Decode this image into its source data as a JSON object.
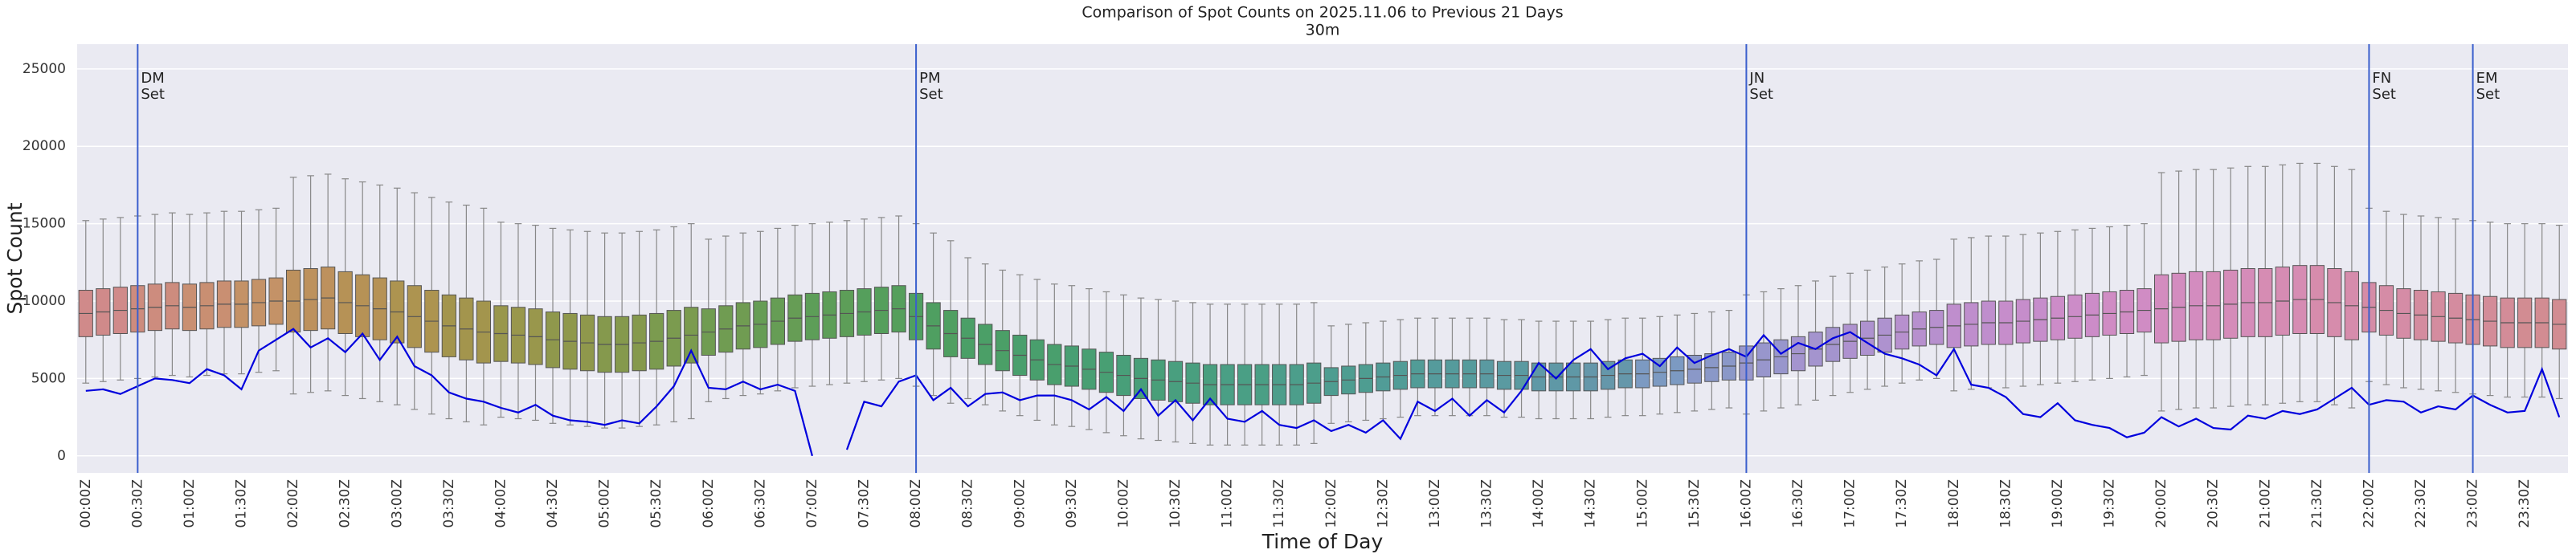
{
  "chart_data": {
    "type": "box",
    "title": "Comparison of Spot Counts on 2025.11.06 to Previous 21 Days",
    "subtitle": "30m",
    "x_label": "Time of Day",
    "y_label": "Spot Count",
    "grid": true,
    "ylim": [
      -1100,
      26600
    ],
    "yticks": [
      0,
      5000,
      10000,
      15000,
      20000,
      25000
    ],
    "categories": [
      "00:00Z",
      null,
      null,
      "00:30Z",
      null,
      null,
      "01:00Z",
      null,
      null,
      "01:30Z",
      null,
      null,
      "02:00Z",
      null,
      null,
      "02:30Z",
      null,
      null,
      "03:00Z",
      null,
      null,
      "03:30Z",
      null,
      null,
      "04:00Z",
      null,
      null,
      "04:30Z",
      null,
      null,
      "05:00Z",
      null,
      null,
      "05:30Z",
      null,
      null,
      "06:00Z",
      null,
      null,
      "06:30Z",
      null,
      null,
      "07:00Z",
      null,
      null,
      "07:30Z",
      null,
      null,
      "08:00Z",
      null,
      null,
      "08:30Z",
      null,
      null,
      "09:00Z",
      null,
      null,
      "09:30Z",
      null,
      null,
      "10:00Z",
      null,
      null,
      "10:30Z",
      null,
      null,
      "11:00Z",
      null,
      null,
      "11:30Z",
      null,
      null,
      "12:00Z",
      null,
      null,
      "12:30Z",
      null,
      null,
      "13:00Z",
      null,
      null,
      "13:30Z",
      null,
      null,
      "14:00Z",
      null,
      null,
      "14:30Z",
      null,
      null,
      "15:00Z",
      null,
      null,
      "15:30Z",
      null,
      null,
      "16:00Z",
      null,
      null,
      "16:30Z",
      null,
      null,
      "17:00Z",
      null,
      null,
      "17:30Z",
      null,
      null,
      "18:00Z",
      null,
      null,
      "18:30Z",
      null,
      null,
      "19:00Z",
      null,
      null,
      "19:30Z",
      null,
      null,
      "20:00Z",
      null,
      null,
      "20:30Z",
      null,
      null,
      "21:00Z",
      null,
      null,
      "21:30Z",
      null,
      null,
      "22:00Z",
      null,
      null,
      "22:30Z",
      null,
      null,
      "23:00Z",
      null,
      null,
      "23:30Z",
      null,
      null
    ],
    "boxes": {
      "median": [
        9200,
        9300,
        9400,
        9500,
        9600,
        9700,
        9600,
        9700,
        9800,
        9800,
        9900,
        10000,
        10000,
        10100,
        10200,
        9900,
        9700,
        9500,
        9300,
        9000,
        8700,
        8400,
        8200,
        8000,
        7900,
        7800,
        7700,
        7500,
        7400,
        7300,
        7200,
        7200,
        7300,
        7400,
        7600,
        7800,
        8000,
        8200,
        8400,
        8500,
        8700,
        8900,
        9000,
        9100,
        9200,
        9300,
        9400,
        9500,
        9000,
        8400,
        7900,
        7600,
        7200,
        6800,
        6500,
        6200,
        5900,
        5800,
        5600,
        5400,
        5200,
        5000,
        4900,
        4800,
        4700,
        4600,
        4600,
        4600,
        4600,
        4600,
        4600,
        4700,
        4800,
        4900,
        5000,
        5100,
        5200,
        5300,
        5300,
        5300,
        5300,
        5300,
        5200,
        5200,
        5100,
        5100,
        5100,
        5100,
        5200,
        5300,
        5300,
        5400,
        5500,
        5600,
        5700,
        5800,
        6000,
        6200,
        6400,
        6600,
        6900,
        7200,
        7400,
        7600,
        7800,
        8000,
        8200,
        8300,
        8400,
        8500,
        8600,
        8600,
        8700,
        8800,
        8900,
        9000,
        9100,
        9200,
        9300,
        9400,
        9500,
        9600,
        9700,
        9700,
        9800,
        9900,
        9900,
        10000,
        10100,
        10100,
        9900,
        9700,
        9600,
        9400,
        9200,
        9100,
        9000,
        8900,
        8800,
        8700,
        8600,
        8600,
        8600,
        8500
      ],
      "q1": [
        7700,
        7800,
        7900,
        8000,
        8100,
        8200,
        8100,
        8200,
        8300,
        8300,
        8400,
        8500,
        8000,
        8100,
        8200,
        7900,
        7700,
        7500,
        7300,
        7000,
        6700,
        6400,
        6200,
        6000,
        6100,
        6000,
        5900,
        5700,
        5600,
        5500,
        5400,
        5400,
        5500,
        5600,
        5800,
        6000,
        6500,
        6700,
        6900,
        7000,
        7200,
        7400,
        7500,
        7600,
        7700,
        7800,
        7900,
        8000,
        7500,
        6900,
        6400,
        6300,
        5900,
        5500,
        5200,
        4900,
        4600,
        4500,
        4300,
        4100,
        3900,
        3700,
        3600,
        3500,
        3400,
        3300,
        3300,
        3300,
        3300,
        3300,
        3300,
        3400,
        3900,
        4000,
        4100,
        4200,
        4300,
        4400,
        4400,
        4400,
        4400,
        4400,
        4300,
        4300,
        4200,
        4200,
        4200,
        4200,
        4300,
        4400,
        4400,
        4500,
        4600,
        4700,
        4800,
        4900,
        4900,
        5100,
        5300,
        5500,
        5800,
        6100,
        6300,
        6500,
        6700,
        6900,
        7100,
        7200,
        7000,
        7100,
        7200,
        7200,
        7300,
        7400,
        7500,
        7600,
        7700,
        7800,
        7900,
        8000,
        7300,
        7400,
        7500,
        7500,
        7600,
        7700,
        7700,
        7800,
        7900,
        7900,
        7700,
        7500,
        8000,
        7800,
        7600,
        7500,
        7400,
        7300,
        7200,
        7100,
        7000,
        7000,
        7000,
        6900
      ],
      "q3": [
        10700,
        10800,
        10900,
        11000,
        11100,
        11200,
        11100,
        11200,
        11300,
        11300,
        11400,
        11500,
        12000,
        12100,
        12200,
        11900,
        11700,
        11500,
        11300,
        11000,
        10700,
        10400,
        10200,
        10000,
        9700,
        9600,
        9500,
        9300,
        9200,
        9100,
        9000,
        9000,
        9100,
        9200,
        9400,
        9600,
        9500,
        9700,
        9900,
        10000,
        10200,
        10400,
        10500,
        10600,
        10700,
        10800,
        10900,
        11000,
        10500,
        9900,
        9400,
        8900,
        8500,
        8100,
        7800,
        7500,
        7200,
        7100,
        6900,
        6700,
        6500,
        6300,
        6200,
        6100,
        6000,
        5900,
        5900,
        5900,
        5900,
        5900,
        5900,
        6000,
        5700,
        5800,
        5900,
        6000,
        6100,
        6200,
        6200,
        6200,
        6200,
        6200,
        6100,
        6100,
        6000,
        6000,
        6000,
        6000,
        6100,
        6200,
        6200,
        6300,
        6400,
        6500,
        6600,
        6700,
        7100,
        7300,
        7500,
        7700,
        8000,
        8300,
        8500,
        8700,
        8900,
        9100,
        9300,
        9400,
        9800,
        9900,
        10000,
        10000,
        10100,
        10200,
        10300,
        10400,
        10500,
        10600,
        10700,
        10800,
        11700,
        11800,
        11900,
        11900,
        12000,
        12100,
        12100,
        12200,
        12300,
        12300,
        12100,
        11900,
        11200,
        11000,
        10800,
        10700,
        10600,
        10500,
        10400,
        10300,
        10200,
        10200,
        10200,
        10100
      ],
      "whislo": [
        4700,
        4800,
        4900,
        5000,
        5100,
        5200,
        5100,
        5200,
        5300,
        5300,
        5400,
        5500,
        4000,
        4100,
        4200,
        3900,
        3700,
        3500,
        3300,
        3000,
        2700,
        2400,
        2200,
        2000,
        2500,
        2400,
        2300,
        2100,
        2000,
        1900,
        1800,
        1800,
        1900,
        2000,
        2200,
        2400,
        3500,
        3700,
        3900,
        4000,
        4200,
        4400,
        4500,
        4600,
        4700,
        4800,
        4900,
        5000,
        4500,
        3900,
        3400,
        3700,
        3300,
        2900,
        2600,
        2300,
        2000,
        1900,
        1700,
        1500,
        1300,
        1100,
        1000,
        900,
        800,
        700,
        700,
        700,
        700,
        700,
        700,
        800,
        2100,
        2200,
        2300,
        2400,
        2500,
        2600,
        2600,
        2600,
        2600,
        2600,
        2500,
        2500,
        2400,
        2400,
        2400,
        2400,
        2500,
        2600,
        2600,
        2700,
        2800,
        2900,
        3000,
        3100,
        2700,
        2900,
        3100,
        3300,
        3600,
        3900,
        4100,
        4300,
        4500,
        4700,
        4900,
        5000,
        4200,
        4300,
        4400,
        4400,
        4500,
        4600,
        4700,
        4800,
        4900,
        5000,
        5100,
        5200,
        2900,
        3000,
        3100,
        3100,
        3200,
        3300,
        3300,
        3400,
        3500,
        3500,
        3300,
        3100,
        4800,
        4600,
        4400,
        4300,
        4200,
        4100,
        4000,
        3900,
        3800,
        3800,
        3800,
        3700
      ],
      "whishi": [
        15200,
        15300,
        15400,
        15500,
        15600,
        15700,
        15600,
        15700,
        15800,
        15800,
        15900,
        16000,
        18000,
        18100,
        18200,
        17900,
        17700,
        17500,
        17300,
        17000,
        16700,
        16400,
        16200,
        16000,
        15100,
        15000,
        14900,
        14700,
        14600,
        14500,
        14400,
        14400,
        14500,
        14600,
        14800,
        15000,
        14000,
        14200,
        14400,
        14500,
        14700,
        14900,
        15000,
        15100,
        15200,
        15300,
        15400,
        15500,
        15000,
        14400,
        13900,
        12800,
        12400,
        12000,
        11700,
        11400,
        11100,
        11000,
        10800,
        10600,
        10400,
        10200,
        10100,
        10000,
        9900,
        9800,
        9800,
        9800,
        9800,
        9800,
        9800,
        9900,
        8400,
        8500,
        8600,
        8700,
        8800,
        8900,
        8900,
        8900,
        8900,
        8900,
        8800,
        8800,
        8700,
        8700,
        8700,
        8700,
        8800,
        8900,
        8900,
        9000,
        9100,
        9200,
        9300,
        9400,
        10400,
        10600,
        10800,
        11000,
        11300,
        11600,
        11800,
        12000,
        12200,
        12400,
        12600,
        12700,
        14000,
        14100,
        14200,
        14200,
        14300,
        14400,
        14500,
        14600,
        14700,
        14800,
        14900,
        15000,
        18300,
        18400,
        18500,
        18500,
        18600,
        18700,
        18700,
        18800,
        18900,
        18900,
        18700,
        18500,
        16000,
        15800,
        15600,
        15500,
        15400,
        15300,
        15200,
        15100,
        15000,
        15000,
        15000,
        14900
      ]
    },
    "box_colors": [
      "#d08a8a",
      "#cd8c7e",
      "#c98f72",
      "#c49267",
      "#bd915d",
      "#b69256",
      "#ad9450",
      "#a3954d",
      "#99974c",
      "#8f984c",
      "#85994d",
      "#7b9b4f",
      "#709c52",
      "#669d55",
      "#5d9e58",
      "#559f5c",
      "#4f9f61",
      "#4b9f67",
      "#499f6d",
      "#489f73",
      "#489f79",
      "#499f7f",
      "#4a9f85",
      "#4c9e8b",
      "#4e9d91",
      "#519c97",
      "#559b9c",
      "#5a9aa1",
      "#5f98a6",
      "#6597aa",
      "#7c9ac2",
      "#8a98c8",
      "#9896cc",
      "#a494ce",
      "#ae92cf",
      "#b790ce",
      "#bf8ecd",
      "#c68dcb",
      "#cc8cc8",
      "#d08cc4",
      "#d38cbf",
      "#d58cb9",
      "#d68cb3",
      "#d68cac",
      "#d58ca6",
      "#d48c9f",
      "#d38c98",
      "#d28c92"
    ],
    "series": [
      {
        "color": "#0000dd",
        "values": [
          4200,
          4300,
          4000,
          4500,
          5000,
          4900,
          4700,
          5600,
          5200,
          4300,
          6800,
          7500,
          8200,
          7000,
          7600,
          6700,
          7900,
          6200,
          7700,
          5800,
          5200,
          4100,
          3700,
          3500,
          3100,
          2800,
          3300,
          2600,
          2300,
          2200,
          2000,
          2300,
          2100,
          3200,
          4500,
          6800,
          4400,
          4300,
          4800,
          4300,
          4600,
          4200,
          0,
          null,
          400,
          3500,
          3200,
          4800,
          5200,
          3600,
          4400,
          3200,
          4000,
          4100,
          3600,
          3900,
          3900,
          3600,
          3000,
          3800,
          2900,
          4300,
          2600,
          3600,
          2300,
          3700,
          2400,
          2200,
          2900,
          2000,
          1800,
          2300,
          1600,
          2000,
          1500,
          2300,
          1100,
          3500,
          2900,
          3700,
          2600,
          3600,
          2800,
          4200,
          6000,
          5000,
          6200,
          6900,
          5600,
          6300,
          6600,
          5800,
          7000,
          6000,
          6500,
          6900,
          6400,
          7800,
          6600,
          7300,
          6900,
          7600,
          8000,
          7300,
          6600,
          6300,
          5900,
          5200,
          6900,
          4600,
          4400,
          3800,
          2700,
          2500,
          3400,
          2300,
          2000,
          1800,
          1200,
          1500,
          2500,
          1900,
          2400,
          1800,
          1700,
          2600,
          2400,
          2900,
          2700,
          3000,
          3700,
          4400,
          3300,
          3600,
          3500,
          2800,
          3200,
          3000,
          3900,
          3300,
          2800,
          2900,
          5600,
          2500
        ]
      }
    ],
    "vlines": [
      {
        "x": "00:30Z",
        "label": [
          "DM",
          "Set"
        ],
        "color": "#3a5fcd"
      },
      {
        "x": "08:00Z",
        "label": [
          "PM",
          "Set"
        ],
        "color": "#3a5fcd"
      },
      {
        "x": "16:00Z",
        "label": [
          "JN",
          "Set"
        ],
        "color": "#3a5fcd"
      },
      {
        "x": "22:00Z",
        "label": [
          "FN",
          "Set"
        ],
        "color": "#3a5fcd"
      },
      {
        "x": "23:00Z",
        "label": [
          "EM",
          "Set"
        ],
        "color": "#3a5fcd"
      }
    ]
  }
}
